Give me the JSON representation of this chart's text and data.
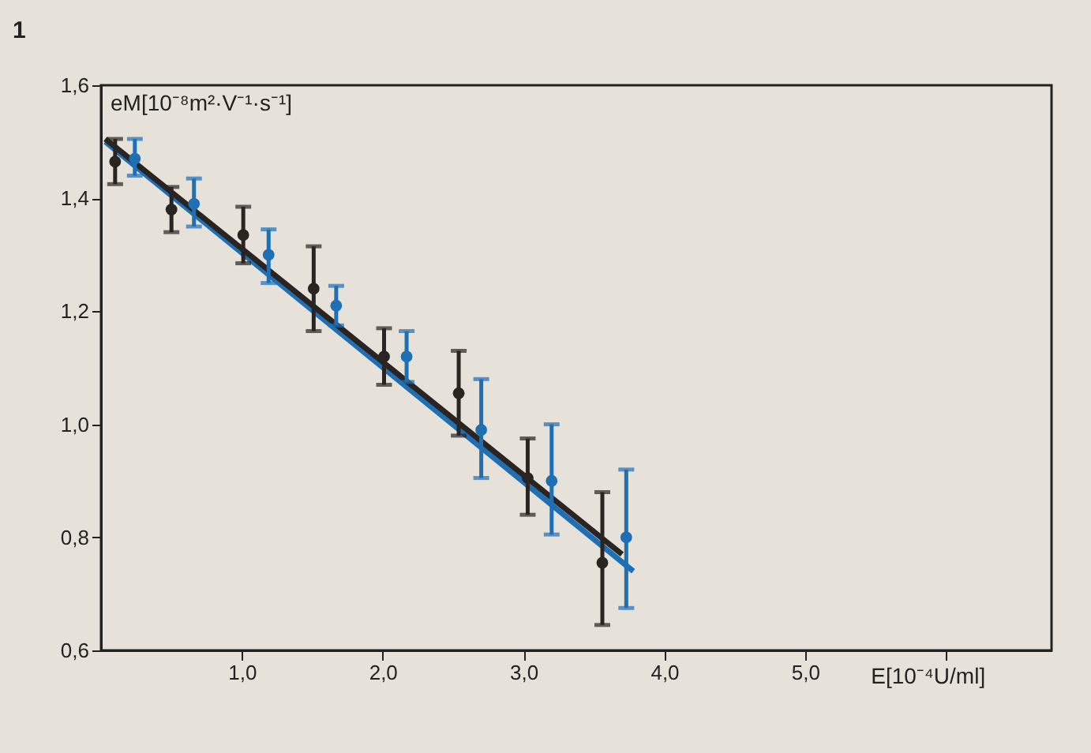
{
  "chart_data": {
    "type": "scatter",
    "xlabel": "E[10⁻⁴U/ml]",
    "ylabel": "eM[10⁻⁸m²·V⁻¹·s⁻¹]",
    "annotations": [
      "1"
    ],
    "xlim": [
      0,
      6.75
    ],
    "ylim": [
      0.6,
      1.6
    ],
    "xticks": [
      {
        "value": 1,
        "label": "1,0"
      },
      {
        "value": 2,
        "label": "2,0"
      },
      {
        "value": 3,
        "label": "3,0"
      },
      {
        "value": 4,
        "label": "4,0"
      },
      {
        "value": 5,
        "label": "5,0"
      },
      {
        "value": 6,
        "label": null
      }
    ],
    "yticks": [
      {
        "value": 0.6,
        "label": "0,6"
      },
      {
        "value": 0.8,
        "label": "0,8"
      },
      {
        "value": 1.0,
        "label": "1,0"
      },
      {
        "value": 1.2,
        "label": "1,2"
      },
      {
        "value": 1.4,
        "label": "1,4"
      },
      {
        "value": 1.6,
        "label": "1,6"
      }
    ],
    "grid": false,
    "marker": "circle",
    "series": [
      {
        "type": "line",
        "color": "#1f6fb5",
        "x": [
          0.03,
          3.78
        ],
        "values": [
          1.5,
          0.74
        ],
        "line_style": "solid",
        "marker": "none"
      },
      {
        "type": "line",
        "color": "#2a2422",
        "x": [
          0.03,
          3.7
        ],
        "values": [
          1.505,
          0.77
        ],
        "line_style": "solid",
        "marker": "none"
      },
      {
        "color": "#1f6fb5",
        "x": [
          0.24,
          0.66,
          1.19,
          1.67,
          2.17,
          2.7,
          3.2,
          3.73
        ],
        "values": [
          1.47,
          1.39,
          1.3,
          1.21,
          1.12,
          0.99,
          0.9,
          0.8
        ],
        "errors": [
          [
            1.44,
            1.505
          ],
          [
            1.35,
            1.435
          ],
          [
            1.25,
            1.345
          ],
          [
            1.175,
            1.245
          ],
          [
            1.075,
            1.165
          ],
          [
            0.905,
            1.08
          ],
          [
            0.805,
            1.0
          ],
          [
            0.675,
            0.92
          ]
        ]
      },
      {
        "color": "#2a2422",
        "x": [
          0.1,
          0.5,
          1.01,
          1.51,
          2.01,
          2.54,
          3.03,
          3.56
        ],
        "values": [
          1.465,
          1.38,
          1.335,
          1.24,
          1.12,
          1.055,
          0.905,
          0.755
        ],
        "errors": [
          [
            1.425,
            1.505
          ],
          [
            1.34,
            1.42
          ],
          [
            1.285,
            1.385
          ],
          [
            1.165,
            1.315
          ],
          [
            1.07,
            1.17
          ],
          [
            0.98,
            1.13
          ],
          [
            0.84,
            0.975
          ],
          [
            0.645,
            0.88
          ]
        ]
      }
    ]
  }
}
